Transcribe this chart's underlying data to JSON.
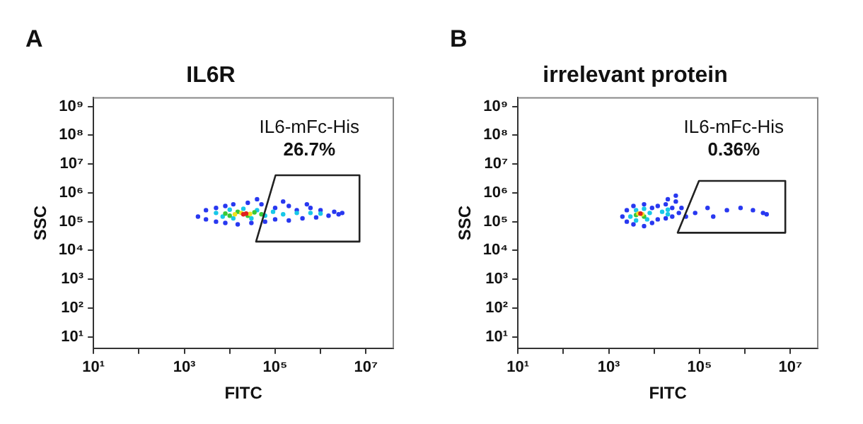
{
  "chart_data": [
    {
      "type": "scatter",
      "title": "IL6R",
      "xlabel": "FITC",
      "ylabel": "SSC",
      "log": "xy",
      "marker": "circle",
      "grid": false,
      "legend": false,
      "xlim": [
        10,
        40000000
      ],
      "ylim": [
        4,
        2000000000
      ],
      "xticks": [
        {
          "value": 10,
          "label": "10¹"
        },
        {
          "value": 100,
          "label": null
        },
        {
          "value": 1000,
          "label": "10³"
        },
        {
          "value": 10000,
          "label": null
        },
        {
          "value": 100000,
          "label": "10⁵"
        },
        {
          "value": 1000000,
          "label": null
        },
        {
          "value": 10000000,
          "label": "10⁷"
        }
      ],
      "yticks": [
        {
          "value": 10,
          "label": "10¹"
        },
        {
          "value": 100,
          "label": "10²"
        },
        {
          "value": 1000,
          "label": "10³"
        },
        {
          "value": 10000,
          "label": "10⁴"
        },
        {
          "value": 100000,
          "label": "10⁵"
        },
        {
          "value": 1000000,
          "label": "10⁶"
        },
        {
          "value": 10000000,
          "label": "10⁷"
        },
        {
          "value": 100000000,
          "label": "10⁸"
        },
        {
          "value": 1000000000,
          "label": "10⁹"
        }
      ],
      "series": [
        {
          "color": "#2838f0",
          "x": [
            2000.0,
            3000.0,
            3000.0,
            5000.0,
            5000.0,
            8000.0,
            8000.0,
            12000.0,
            15000.0,
            25000.0,
            30000.0,
            50000.0,
            60000.0,
            100000.0,
            100000.0,
            200000.0,
            200000.0,
            300000.0,
            400000.0,
            600000.0,
            800000.0,
            1000000.0,
            1500000.0,
            2000000.0,
            2500000.0,
            3000000.0,
            40000.0,
            150000.0,
            500000.0
          ],
          "values": [
            150000.0,
            250000.0,
            120000.0,
            300000.0,
            100000.0,
            350000.0,
            90000.0,
            400000.0,
            80000.0,
            450000.0,
            90000.0,
            400000.0,
            100000.0,
            300000.0,
            120000.0,
            350000.0,
            110000.0,
            250000.0,
            130000.0,
            300000.0,
            140000.0,
            250000.0,
            160000.0,
            220000.0,
            180000.0,
            200000.0,
            600000.0,
            500000.0,
            400000.0
          ]
        },
        {
          "color": "#18c8e8",
          "x": [
            5000.0,
            7000.0,
            10000.0,
            12000.0,
            20000.0,
            30000.0,
            40000.0,
            60000.0,
            90000.0,
            150000.0,
            300000.0,
            600000.0,
            1000000.0
          ],
          "values": [
            200000.0,
            150000.0,
            260000.0,
            130000.0,
            280000.0,
            130000.0,
            250000.0,
            160000.0,
            220000.0,
            180000.0,
            200000.0,
            200000.0,
            190000.0
          ]
        },
        {
          "color": "#38c838",
          "x": [
            8000.0,
            10000.0,
            15000.0,
            25000.0,
            35000.0,
            50000.0
          ],
          "values": [
            190000.0,
            160000.0,
            220000.0,
            160000.0,
            210000.0,
            180000.0
          ]
        },
        {
          "color": "#f0e020",
          "x": [
            13000.0,
            18000.0,
            28000.0
          ],
          "values": [
            180000.0,
            200000.0,
            185000.0
          ]
        },
        {
          "color": "#e02020",
          "x": [
            20000.0,
            23000.0
          ],
          "values": [
            180000.0,
            190000.0
          ]
        }
      ],
      "annotations": [
        "A",
        "IL6-mFc-His",
        "26.7%"
      ]
    },
    {
      "type": "scatter",
      "title": "irrelevant protein",
      "xlabel": "FITC",
      "ylabel": "SSC",
      "log": "xy",
      "marker": "circle",
      "grid": false,
      "legend": false,
      "xlim": [
        10,
        40000000
      ],
      "ylim": [
        4,
        2000000000
      ],
      "xticks": [
        {
          "value": 10,
          "label": "10¹"
        },
        {
          "value": 100,
          "label": null
        },
        {
          "value": 1000,
          "label": "10³"
        },
        {
          "value": 10000,
          "label": null
        },
        {
          "value": 100000,
          "label": "10⁵"
        },
        {
          "value": 1000000,
          "label": null
        },
        {
          "value": 10000000,
          "label": "10⁷"
        }
      ],
      "yticks": [
        {
          "value": 10,
          "label": "10¹"
        },
        {
          "value": 100,
          "label": "10²"
        },
        {
          "value": 1000,
          "label": "10³"
        },
        {
          "value": 10000,
          "label": "10⁴"
        },
        {
          "value": 100000,
          "label": "10⁵"
        },
        {
          "value": 1000000,
          "label": "10⁶"
        },
        {
          "value": 10000000,
          "label": "10⁷"
        },
        {
          "value": 100000000,
          "label": "10⁸"
        },
        {
          "value": 1000000000,
          "label": "10⁹"
        }
      ],
      "series": [
        {
          "color": "#2838f0",
          "x": [
            2000.0,
            2500.0,
            2500.0,
            3500.0,
            3500.0,
            6000.0,
            6000.0,
            9000.0,
            9000.0,
            12000.0,
            12000.0,
            18000.0,
            18000.0,
            25000.0,
            25000.0,
            30000.0,
            35000.0,
            40000.0,
            20000.0,
            30000.0,
            50000.0,
            80000.0,
            150000.0,
            200000.0,
            400000.0,
            800000.0,
            1500000.0,
            2500000.0,
            3000000.0
          ],
          "values": [
            150000.0,
            250000.0,
            100000.0,
            350000.0,
            80000.0,
            400000.0,
            70000.0,
            300000.0,
            90000.0,
            350000.0,
            120000.0,
            400000.0,
            130000.0,
            300000.0,
            150000.0,
            500000.0,
            200000.0,
            300000.0,
            600000.0,
            800000.0,
            150000.0,
            200000.0,
            300000.0,
            150000.0,
            250000.0,
            300000.0,
            250000.0,
            200000.0,
            180000.0
          ]
        },
        {
          "color": "#18c8e8",
          "x": [
            3000.0,
            4000.0,
            4000.0,
            6000.0,
            7000.0,
            8000.0,
            15000.0,
            20000.0,
            20000.0
          ],
          "values": [
            150000.0,
            250000.0,
            110000.0,
            280000.0,
            120000.0,
            200000.0,
            220000.0,
            180000.0,
            260000.0
          ]
        },
        {
          "color": "#38c838",
          "x": [
            4000.0,
            6000.0
          ],
          "values": [
            170000.0,
            150000.0
          ]
        },
        {
          "color": "#f0e020",
          "x": [
            4500.0,
            5500.0
          ],
          "values": [
            190000.0,
            180000.0
          ]
        },
        {
          "color": "#e02020",
          "x": [
            5000.0
          ],
          "values": [
            190000.0
          ]
        }
      ],
      "annotations": [
        "B",
        "IL6-mFc-His",
        "0.36%"
      ]
    }
  ]
}
